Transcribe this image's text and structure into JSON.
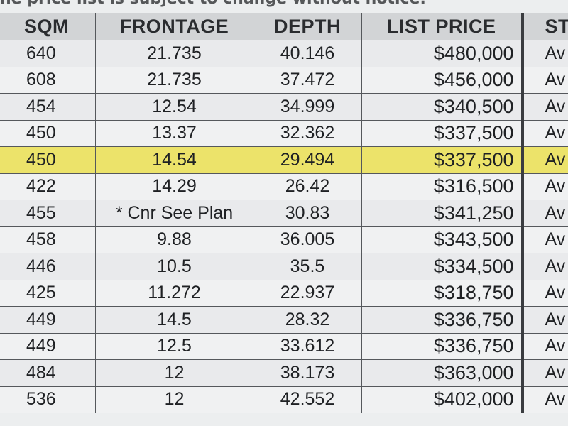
{
  "notice": "he price list is subject to change without notice.",
  "columns": {
    "sqm": "SQM",
    "frontage": "FRONTAGE",
    "depth": "DEPTH",
    "list_price": "LIST PRICE",
    "status": "ST"
  },
  "colors": {
    "highlight": "#ece36a",
    "header_bg": "#d2d4d6",
    "grid": "#55585c"
  },
  "rows": [
    {
      "sqm": "640",
      "frontage": "21.735",
      "depth": "40.146",
      "price": "$480,000",
      "status": "Av",
      "highlight": false
    },
    {
      "sqm": "608",
      "frontage": "21.735",
      "depth": "37.472",
      "price": "$456,000",
      "status": "Av",
      "highlight": false
    },
    {
      "sqm": "454",
      "frontage": "12.54",
      "depth": "34.999",
      "price": "$340,500",
      "status": "Av",
      "highlight": false
    },
    {
      "sqm": "450",
      "frontage": "13.37",
      "depth": "32.362",
      "price": "$337,500",
      "status": "Av",
      "highlight": false
    },
    {
      "sqm": "450",
      "frontage": "14.54",
      "depth": "29.494",
      "price": "$337,500",
      "status": "Av",
      "highlight": true
    },
    {
      "sqm": "422",
      "frontage": "14.29",
      "depth": "26.42",
      "price": "$316,500",
      "status": "Av",
      "highlight": false
    },
    {
      "sqm": "455",
      "frontage": "* Cnr See Plan",
      "depth": "30.83",
      "price": "$341,250",
      "status": "Av",
      "highlight": false
    },
    {
      "sqm": "458",
      "frontage": "9.88",
      "depth": "36.005",
      "price": "$343,500",
      "status": "Av",
      "highlight": false
    },
    {
      "sqm": "446",
      "frontage": "10.5",
      "depth": "35.5",
      "price": "$334,500",
      "status": "Av",
      "highlight": false
    },
    {
      "sqm": "425",
      "frontage": "11.272",
      "depth": "22.937",
      "price": "$318,750",
      "status": "Av",
      "highlight": false
    },
    {
      "sqm": "449",
      "frontage": "14.5",
      "depth": "28.32",
      "price": "$336,750",
      "status": "Av",
      "highlight": false
    },
    {
      "sqm": "449",
      "frontage": "12.5",
      "depth": "33.612",
      "price": "$336,750",
      "status": "Av",
      "highlight": false
    },
    {
      "sqm": "484",
      "frontage": "12",
      "depth": "38.173",
      "price": "$363,000",
      "status": "Av",
      "highlight": false
    },
    {
      "sqm": "536",
      "frontage": "12",
      "depth": "42.552",
      "price": "$402,000",
      "status": "Av",
      "highlight": false
    }
  ]
}
